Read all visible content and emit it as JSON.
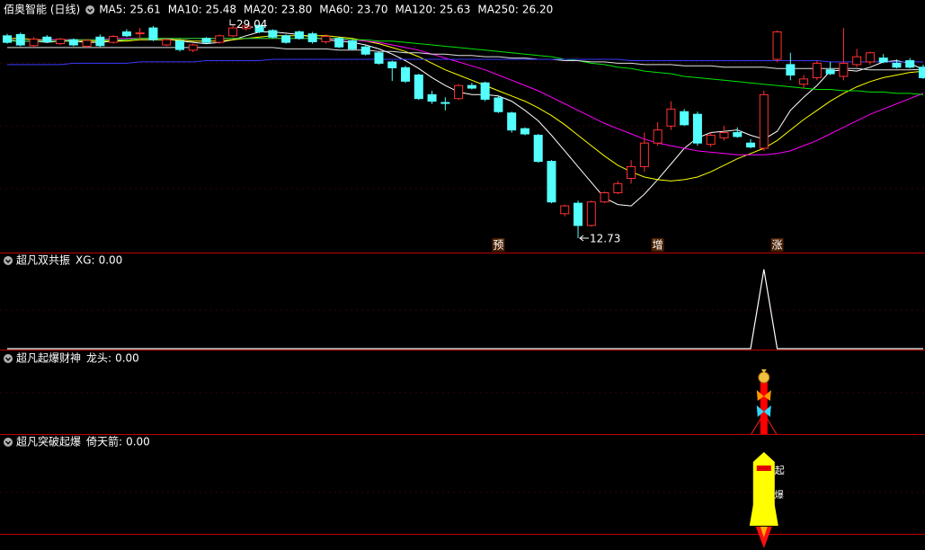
{
  "chart_data": [
    {
      "type": "candlestick",
      "title": "佰奥智能 (日线)",
      "up_color": "#ff3232",
      "down_color": "#54ffff",
      "ylim": [
        11.7,
        29.7
      ],
      "open": [
        28.2,
        28.3,
        27.45,
        28.1,
        27.6,
        27.9,
        27.4,
        28.1,
        27.7,
        28.5,
        28.4,
        28.8,
        27.5,
        27.8,
        27.1,
        28.0,
        27.7,
        28.2,
        28.75,
        29.0,
        28.6,
        28.2,
        28.5,
        28.35,
        27.75,
        28.0,
        27.8,
        27.35,
        26.9,
        26.2,
        25.76,
        25.2,
        23.7,
        23.1,
        23.4,
        24.4,
        24.6,
        23.45,
        22.3,
        21.1,
        20.6,
        18.6,
        14.6,
        15.4,
        13.7,
        15.5,
        16.2,
        17.3,
        18.2,
        20.0,
        21.3,
        22.4,
        22.2,
        19.9,
        20.4,
        20.8,
        20.0,
        19.6,
        26.4,
        26.0,
        24.5,
        25.0,
        25.6,
        25.1,
        26.0,
        26.2,
        26.5,
        26.1,
        26.3,
        25.8
      ],
      "high": [
        28.35,
        28.45,
        28.1,
        28.25,
        28.05,
        28.0,
        27.95,
        28.3,
        28.25,
        28.7,
        28.8,
        28.95,
        28.0,
        27.95,
        27.6,
        28.1,
        28.3,
        29.04,
        28.98,
        29.01,
        28.7,
        28.3,
        28.6,
        28.5,
        28.3,
        28.1,
        27.95,
        27.5,
        27.0,
        26.3,
        25.9,
        25.3,
        24.0,
        23.5,
        24.5,
        24.6,
        24.7,
        23.6,
        22.4,
        21.2,
        20.7,
        18.7,
        15.3,
        15.6,
        15.6,
        16.3,
        17.1,
        18.7,
        20.8,
        21.6,
        23.2,
        22.6,
        22.4,
        20.8,
        21.3,
        21.2,
        20.3,
        24.0,
        28.6,
        26.9,
        25.2,
        26.3,
        26.2,
        28.8,
        27.2,
        27.0,
        26.8,
        26.4,
        26.5,
        26.0
      ],
      "low": [
        27.6,
        27.4,
        27.3,
        27.65,
        27.5,
        27.4,
        27.3,
        27.35,
        27.6,
        28.1,
        27.9,
        27.8,
        27.4,
        27.0,
        26.95,
        27.6,
        27.6,
        28.1,
        28.6,
        28.4,
        28.0,
        27.6,
        27.9,
        27.6,
        27.6,
        27.25,
        27.1,
        26.7,
        26.0,
        24.75,
        24.6,
        23.3,
        23.0,
        22.5,
        23.3,
        24.1,
        23.2,
        22.3,
        20.8,
        20.6,
        18.5,
        15.4,
        14.4,
        12.73,
        13.6,
        15.4,
        16.1,
        16.9,
        17.8,
        19.8,
        21.0,
        21.3,
        19.8,
        19.7,
        20.2,
        20.4,
        19.6,
        19.4,
        26.2,
        24.8,
        24.2,
        24.8,
        25.2,
        24.8,
        25.8,
        26.0,
        26.1,
        25.7,
        25.7,
        24.9
      ],
      "close": [
        27.7,
        27.5,
        27.95,
        27.75,
        27.95,
        27.5,
        27.85,
        27.45,
        28.15,
        28.2,
        28.42,
        27.9,
        27.9,
        27.15,
        27.5,
        27.7,
        28.2,
        28.8,
        28.95,
        28.5,
        28.1,
        27.7,
        28.0,
        27.75,
        28.15,
        27.35,
        27.2,
        26.8,
        26.1,
        25.75,
        24.73,
        23.4,
        23.2,
        23.08,
        24.4,
        24.2,
        23.35,
        22.4,
        21.0,
        20.7,
        18.6,
        15.5,
        15.2,
        13.7,
        15.5,
        16.2,
        16.9,
        18.2,
        20.0,
        21.0,
        22.6,
        21.4,
        20.0,
        20.6,
        20.8,
        20.5,
        19.7,
        23.7,
        28.5,
        25.2,
        24.9,
        26.1,
        25.3,
        26.1,
        26.6,
        26.9,
        26.2,
        25.8,
        25.8,
        25.0
      ],
      "series": [
        {
          "name": "MA5:",
          "current_label": "25.61",
          "color": "#ffffff",
          "values": [
            27.9,
            27.8,
            27.8,
            27.7,
            27.8,
            27.8,
            27.7,
            27.7,
            27.8,
            27.9,
            28.0,
            28.0,
            28.0,
            27.8,
            27.7,
            27.6,
            27.7,
            27.9,
            28.2,
            28.5,
            28.5,
            28.4,
            28.3,
            28.1,
            27.9,
            27.8,
            27.7,
            27.5,
            27.2,
            26.8,
            26.3,
            25.7,
            25.0,
            24.4,
            23.9,
            23.7,
            23.7,
            23.6,
            23.2,
            22.5,
            21.7,
            20.6,
            19.4,
            18.2,
            17.0,
            15.8,
            15.3,
            15.2,
            16.1,
            17.2,
            18.4,
            19.6,
            20.4,
            20.8,
            20.9,
            21.0,
            20.6,
            20.3,
            20.9,
            22.5,
            23.5,
            24.4,
            25.5,
            25.6,
            25.5,
            25.8,
            26.2,
            26.3,
            26.1,
            25.61
          ]
        },
        {
          "name": "MA10:",
          "current_label": "25.48",
          "color": "#ffff00",
          "values": [
            28.0,
            28.0,
            27.9,
            27.9,
            27.9,
            27.9,
            27.8,
            27.8,
            27.8,
            27.8,
            27.9,
            27.9,
            27.9,
            27.9,
            27.8,
            27.8,
            27.8,
            27.9,
            28.0,
            28.1,
            28.2,
            28.2,
            28.2,
            28.2,
            28.2,
            28.1,
            28.0,
            27.8,
            27.6,
            27.3,
            27.0,
            26.6,
            26.1,
            25.6,
            25.2,
            24.8,
            24.4,
            24.0,
            23.6,
            23.2,
            22.7,
            22.1,
            21.4,
            20.6,
            19.8,
            19.0,
            18.3,
            17.8,
            17.4,
            17.2,
            17.1,
            17.2,
            17.4,
            17.8,
            18.3,
            18.8,
            19.2,
            19.6,
            20.2,
            21.0,
            21.8,
            22.5,
            23.2,
            23.8,
            24.3,
            24.7,
            25.0,
            25.2,
            25.4,
            25.48
          ]
        },
        {
          "name": "MA20:",
          "current_label": "23.80",
          "color": "#ff00ff",
          "values": [
            27.8,
            27.8,
            27.8,
            27.9,
            27.9,
            27.9,
            27.9,
            27.9,
            28.0,
            28.0,
            28.0,
            28.0,
            28.0,
            28.0,
            28.0,
            28.0,
            28.0,
            28.0,
            28.0,
            28.0,
            28.0,
            28.0,
            28.0,
            28.0,
            28.0,
            27.9,
            27.9,
            27.8,
            27.7,
            27.5,
            27.3,
            27.1,
            26.8,
            26.5,
            26.2,
            25.9,
            25.6,
            25.2,
            24.8,
            24.4,
            24.0,
            23.5,
            23.0,
            22.5,
            22.0,
            21.5,
            21.1,
            20.7,
            20.3,
            20.0,
            19.8,
            19.6,
            19.4,
            19.3,
            19.2,
            19.1,
            19.1,
            19.1,
            19.2,
            19.4,
            19.8,
            20.2,
            20.7,
            21.2,
            21.7,
            22.2,
            22.6,
            23.0,
            23.4,
            23.8
          ]
        },
        {
          "name": "MA60:",
          "current_label": "23.70",
          "color": "#00e600",
          "values": [
            27.8,
            27.8,
            27.8,
            27.8,
            27.8,
            27.9,
            27.9,
            27.9,
            27.9,
            27.9,
            28.0,
            28.0,
            28.0,
            28.0,
            28.0,
            28.0,
            28.0,
            28.0,
            28.0,
            28.0,
            28.0,
            28.0,
            28.0,
            28.0,
            28.0,
            28.0,
            27.9,
            27.9,
            27.8,
            27.8,
            27.7,
            27.6,
            27.5,
            27.4,
            27.3,
            27.2,
            27.1,
            27.0,
            26.9,
            26.8,
            26.7,
            26.6,
            26.4,
            26.3,
            26.1,
            26.0,
            25.8,
            25.7,
            25.5,
            25.4,
            25.3,
            25.1,
            25.0,
            24.9,
            24.8,
            24.7,
            24.6,
            24.5,
            24.4,
            24.3,
            24.2,
            24.1,
            24.1,
            24.0,
            24.0,
            23.9,
            23.9,
            23.8,
            23.8,
            23.7
          ]
        },
        {
          "name": "MA120:",
          "current_label": "25.63",
          "color": "#e0e0e0",
          "values": [
            27.3,
            27.3,
            27.3,
            27.3,
            27.3,
            27.3,
            27.3,
            27.3,
            27.3,
            27.3,
            27.3,
            27.3,
            27.3,
            27.3,
            27.3,
            27.3,
            27.3,
            27.3,
            27.3,
            27.3,
            27.3,
            27.2,
            27.2,
            27.2,
            27.2,
            27.1,
            27.1,
            27.1,
            27.0,
            27.0,
            26.9,
            26.9,
            26.8,
            26.8,
            26.7,
            26.7,
            26.6,
            26.6,
            26.5,
            26.5,
            26.4,
            26.4,
            26.3,
            26.3,
            26.2,
            26.2,
            26.1,
            26.1,
            26.0,
            26.0,
            26.0,
            25.9,
            25.9,
            25.9,
            25.8,
            25.8,
            25.8,
            25.8,
            25.7,
            25.7,
            25.7,
            25.7,
            25.7,
            25.7,
            25.7,
            25.6,
            25.6,
            25.6,
            25.6,
            25.63
          ]
        },
        {
          "name": "MA250:",
          "current_label": "26.20",
          "color": "#3a3aff",
          "values": [
            26.0,
            26.0,
            26.0,
            26.0,
            26.0,
            26.1,
            26.1,
            26.1,
            26.1,
            26.1,
            26.2,
            26.2,
            26.2,
            26.2,
            26.2,
            26.3,
            26.3,
            26.3,
            26.3,
            26.3,
            26.4,
            26.4,
            26.4,
            26.4,
            26.4,
            26.4,
            26.4,
            26.4,
            26.4,
            26.4,
            26.4,
            26.4,
            26.4,
            26.4,
            26.4,
            26.4,
            26.4,
            26.4,
            26.4,
            26.4,
            26.4,
            26.4,
            26.4,
            26.4,
            26.4,
            26.4,
            26.4,
            26.3,
            26.3,
            26.3,
            26.3,
            26.3,
            26.3,
            26.3,
            26.3,
            26.3,
            26.3,
            26.3,
            26.3,
            26.3,
            26.3,
            26.3,
            26.2,
            26.2,
            26.2,
            26.2,
            26.2,
            26.2,
            26.2,
            26.2
          ]
        }
      ],
      "extremes": {
        "high_index": 17,
        "low_index": 43
      },
      "markers": [
        {
          "text": "预",
          "index": 37
        },
        {
          "text": "增",
          "index": 49
        },
        {
          "text": "涨",
          "index": 58
        }
      ]
    },
    {
      "type": "line",
      "title": "超凡双共振",
      "legend_label": "XG:",
      "legend_value": {
        "value": 0,
        "label": "0.00"
      },
      "legend_color": "#ffffff",
      "color": "#ffffff",
      "ylim": [
        0,
        1.2
      ],
      "values": [
        0,
        0,
        0,
        0,
        0,
        0,
        0,
        0,
        0,
        0,
        0,
        0,
        0,
        0,
        0,
        0,
        0,
        0,
        0,
        0,
        0,
        0,
        0,
        0,
        0,
        0,
        0,
        0,
        0,
        0,
        0,
        0,
        0,
        0,
        0,
        0,
        0,
        0,
        0,
        0,
        0,
        0,
        0,
        0,
        0,
        0,
        0,
        0,
        0,
        0,
        0,
        0,
        0,
        0,
        0,
        0,
        0,
        1,
        0,
        0,
        0,
        0,
        0,
        0,
        0,
        0,
        0,
        0,
        0,
        0
      ]
    },
    {
      "type": "signal",
      "style": "fortune",
      "title": "超凡起爆财神",
      "legend_label": "龙头:",
      "legend_value": {
        "value": 0,
        "label": "0.00"
      },
      "legend_color": "#ff3232",
      "values": [
        0,
        0,
        0,
        0,
        0,
        0,
        0,
        0,
        0,
        0,
        0,
        0,
        0,
        0,
        0,
        0,
        0,
        0,
        0,
        0,
        0,
        0,
        0,
        0,
        0,
        0,
        0,
        0,
        0,
        0,
        0,
        0,
        0,
        0,
        0,
        0,
        0,
        0,
        0,
        0,
        0,
        0,
        0,
        0,
        0,
        0,
        0,
        0,
        0,
        0,
        0,
        0,
        0,
        0,
        0,
        0,
        0,
        1,
        0,
        0,
        0,
        0,
        0,
        0,
        0,
        0,
        0,
        0,
        0,
        0
      ]
    },
    {
      "type": "signal",
      "style": "rocket",
      "title": "超凡突破起爆",
      "legend_label": "倚天箭:",
      "legend_value": {
        "value": 0,
        "label": "0.00"
      },
      "legend_color": "#ff3232",
      "rocket_texts": [
        "起",
        "爆"
      ],
      "values": [
        0,
        0,
        0,
        0,
        0,
        0,
        0,
        0,
        0,
        0,
        0,
        0,
        0,
        0,
        0,
        0,
        0,
        0,
        0,
        0,
        0,
        0,
        0,
        0,
        0,
        0,
        0,
        0,
        0,
        0,
        0,
        0,
        0,
        0,
        0,
        0,
        0,
        0,
        0,
        0,
        0,
        0,
        0,
        0,
        0,
        0,
        0,
        0,
        0,
        0,
        0,
        0,
        0,
        0,
        0,
        0,
        0,
        1,
        0,
        0,
        0,
        0,
        0,
        0,
        0,
        0,
        0,
        0,
        0,
        0
      ]
    }
  ]
}
